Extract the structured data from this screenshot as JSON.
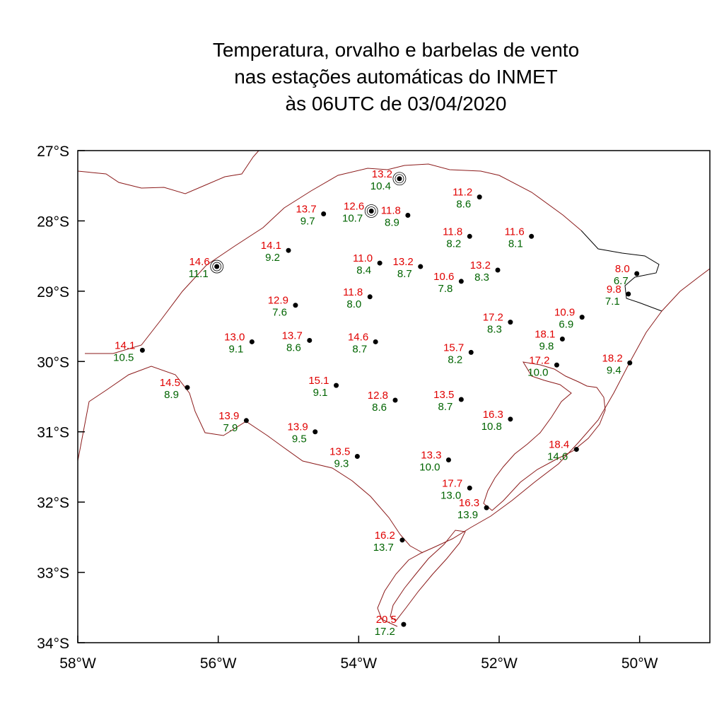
{
  "title": {
    "line1": "Temperatura, orvalho e barbelas de vento",
    "line2": "nas estações automáticas do INMET",
    "line3": "às 06UTC de 03/04/2020"
  },
  "colors": {
    "temperature": "#e00000",
    "dewpoint": "#006400",
    "state_border": "#8b1a1a",
    "coast": "#000000",
    "station": "#000000"
  },
  "axes": {
    "lon_range": [
      -58,
      -49
    ],
    "lat_range": [
      -34,
      -27
    ],
    "x_ticks": [
      {
        "value": -58,
        "label": "58°W"
      },
      {
        "value": -56,
        "label": "56°W"
      },
      {
        "value": -54,
        "label": "54°W"
      },
      {
        "value": -52,
        "label": "52°W"
      },
      {
        "value": -50,
        "label": "50°W"
      }
    ],
    "y_ticks": [
      {
        "value": -27,
        "label": "27°S"
      },
      {
        "value": -28,
        "label": "28°S"
      },
      {
        "value": -29,
        "label": "29°S"
      },
      {
        "value": -30,
        "label": "30°S"
      },
      {
        "value": -31,
        "label": "31°S"
      },
      {
        "value": -32,
        "label": "32°S"
      },
      {
        "value": -33,
        "label": "33°S"
      },
      {
        "value": -34,
        "label": "34°S"
      }
    ]
  },
  "stations": [
    {
      "lon": -53.42,
      "lat": -27.4,
      "temp": "13.2",
      "dew": "10.4",
      "calm": true
    },
    {
      "lon": -52.28,
      "lat": -27.66,
      "temp": "11.2",
      "dew": "8.6"
    },
    {
      "lon": -54.5,
      "lat": -27.9,
      "temp": "13.7",
      "dew": "9.7"
    },
    {
      "lon": -53.82,
      "lat": -27.86,
      "temp": "12.6",
      "dew": "10.7",
      "calm": true
    },
    {
      "lon": -53.3,
      "lat": -27.92,
      "temp": "11.8",
      "dew": "8.9"
    },
    {
      "lon": -52.42,
      "lat": -28.22,
      "temp": "11.8",
      "dew": "8.2"
    },
    {
      "lon": -51.54,
      "lat": -28.22,
      "temp": "11.6",
      "dew": "8.1"
    },
    {
      "lon": -55.0,
      "lat": -28.42,
      "temp": "14.1",
      "dew": "9.2"
    },
    {
      "lon": -56.02,
      "lat": -28.65,
      "temp": "14.6",
      "dew": "11.1",
      "calm": true
    },
    {
      "lon": -53.7,
      "lat": -28.6,
      "temp": "11.0",
      "dew": "8.4"
    },
    {
      "lon": -53.12,
      "lat": -28.65,
      "temp": "13.2",
      "dew": "8.7"
    },
    {
      "lon": -52.02,
      "lat": -28.7,
      "temp": "13.2",
      "dew": "8.3"
    },
    {
      "lon": -52.54,
      "lat": -28.86,
      "temp": "10.6",
      "dew": "7.8"
    },
    {
      "lon": -50.04,
      "lat": -28.75,
      "temp": "8.0",
      "dew": "6.7"
    },
    {
      "lon": -50.16,
      "lat": -29.04,
      "temp": "9.8",
      "dew": "7.1"
    },
    {
      "lon": -53.84,
      "lat": -29.08,
      "temp": "11.8",
      "dew": "8.0"
    },
    {
      "lon": -54.9,
      "lat": -29.2,
      "temp": "12.9",
      "dew": "7.6"
    },
    {
      "lon": -50.82,
      "lat": -29.37,
      "temp": "10.9",
      "dew": "6.9"
    },
    {
      "lon": -51.84,
      "lat": -29.44,
      "temp": "17.2",
      "dew": "8.3"
    },
    {
      "lon": -51.1,
      "lat": -29.68,
      "temp": "18.1",
      "dew": "9.8"
    },
    {
      "lon": -57.08,
      "lat": -29.84,
      "temp": "14.1",
      "dew": "10.5"
    },
    {
      "lon": -55.52,
      "lat": -29.72,
      "temp": "13.0",
      "dew": "9.1"
    },
    {
      "lon": -54.7,
      "lat": -29.7,
      "temp": "13.7",
      "dew": "8.6"
    },
    {
      "lon": -53.76,
      "lat": -29.72,
      "temp": "14.6",
      "dew": "8.7"
    },
    {
      "lon": -52.4,
      "lat": -29.87,
      "temp": "15.7",
      "dew": "8.2"
    },
    {
      "lon": -51.18,
      "lat": -30.05,
      "temp": "17.2",
      "dew": "10.0"
    },
    {
      "lon": -50.14,
      "lat": -30.02,
      "temp": "18.2",
      "dew": "9.4"
    },
    {
      "lon": -56.44,
      "lat": -30.37,
      "temp": "14.5",
      "dew": "8.9"
    },
    {
      "lon": -54.32,
      "lat": -30.34,
      "temp": "15.1",
      "dew": "9.1"
    },
    {
      "lon": -53.48,
      "lat": -30.55,
      "temp": "12.8",
      "dew": "8.6"
    },
    {
      "lon": -52.54,
      "lat": -30.54,
      "temp": "13.5",
      "dew": "8.7"
    },
    {
      "lon": -51.84,
      "lat": -30.82,
      "temp": "16.3",
      "dew": "10.8"
    },
    {
      "lon": -55.6,
      "lat": -30.84,
      "temp": "13.9",
      "dew": "7.9"
    },
    {
      "lon": -54.62,
      "lat": -31.0,
      "temp": "13.9",
      "dew": "9.5"
    },
    {
      "lon": -54.02,
      "lat": -31.35,
      "temp": "13.5",
      "dew": "9.3"
    },
    {
      "lon": -50.9,
      "lat": -31.25,
      "temp": "18.4",
      "dew": "14.6"
    },
    {
      "lon": -52.72,
      "lat": -31.4,
      "temp": "13.3",
      "dew": "10.0"
    },
    {
      "lon": -52.42,
      "lat": -31.8,
      "temp": "17.7",
      "dew": "13.0"
    },
    {
      "lon": -52.18,
      "lat": -32.08,
      "temp": "16.3",
      "dew": "13.9"
    },
    {
      "lon": -53.38,
      "lat": -32.54,
      "temp": "16.2",
      "dew": "13.7"
    },
    {
      "lon": -53.36,
      "lat": -33.74,
      "temp": "20.5",
      "dew": "17.2"
    }
  ]
}
